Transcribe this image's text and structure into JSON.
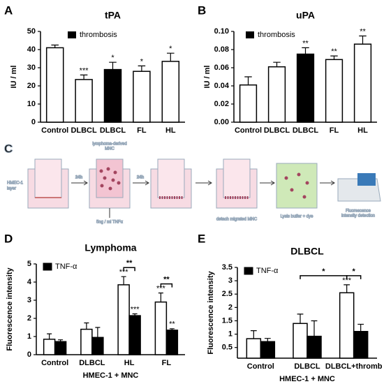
{
  "chart_data": [
    {
      "type": "bar",
      "panel": "A",
      "title": "tPA",
      "ylabel": "IU / ml",
      "categories": [
        "Control",
        "DLBCL",
        "DLBCL",
        "FL",
        "HL"
      ],
      "series": [
        {
          "colors": [
            "#ffffff",
            "#ffffff",
            "#000000",
            "#ffffff",
            "#ffffff"
          ],
          "values": [
            41,
            23.5,
            29,
            28,
            33.5
          ],
          "errors": [
            1.5,
            2.5,
            4,
            3,
            4.5
          ],
          "annotations": [
            null,
            "***",
            "*",
            "*",
            "*"
          ]
        }
      ],
      "legend": {
        "label": "thrombosis",
        "color": "#000000"
      },
      "ylim": [
        0,
        50
      ],
      "yticks": [
        0,
        10,
        20,
        30,
        40,
        50
      ]
    },
    {
      "type": "bar",
      "panel": "B",
      "title": "uPA",
      "ylabel": "IU / ml",
      "categories": [
        "Control",
        "DLBCL",
        "DLBCL",
        "FL",
        "HL"
      ],
      "series": [
        {
          "colors": [
            "#ffffff",
            "#ffffff",
            "#000000",
            "#ffffff",
            "#ffffff"
          ],
          "values": [
            0.041,
            0.061,
            0.075,
            0.069,
            0.086
          ],
          "errors": [
            0.009,
            0.005,
            0.007,
            0.004,
            0.009
          ],
          "annotations": [
            null,
            null,
            "**",
            "**",
            "**"
          ]
        }
      ],
      "legend": {
        "label": "thrombosis",
        "color": "#000000"
      },
      "ylim": [
        0,
        0.1
      ],
      "yticks": [
        {
          "value": 0,
          "label": "0.00"
        },
        {
          "value": 0.02,
          "label": "0.02"
        },
        {
          "value": 0.04,
          "label": "0.04"
        },
        {
          "value": 0.06,
          "label": "0.06"
        },
        {
          "value": 0.08,
          "label": "0.08"
        },
        {
          "value": 0.1,
          "label": "0.10"
        }
      ]
    },
    {
      "type": "bar",
      "panel": "D",
      "title": "Lymphoma",
      "ylabel": "Fluorescence intensity",
      "xlabel": "HMEC-1 + MNC",
      "categories": [
        "Control",
        "DLBCL",
        "HL",
        "FL"
      ],
      "series": [
        {
          "color": "#ffffff",
          "values": [
            0.85,
            1.4,
            3.85,
            2.9
          ],
          "errors": [
            0.3,
            0.35,
            0.45,
            0.5
          ],
          "annotations": [
            null,
            null,
            "***",
            "***"
          ]
        },
        {
          "name": "TNF-α",
          "color": "#000000",
          "values": [
            0.72,
            0.95,
            2.15,
            1.35
          ],
          "errors": [
            0.1,
            0.55,
            0.1,
            0.08
          ],
          "annotations": [
            null,
            null,
            "***",
            "**"
          ]
        }
      ],
      "brackets": [
        {
          "from": [
            0,
            2
          ],
          "to": [
            1,
            2
          ],
          "label": "**"
        },
        {
          "from": [
            0,
            3
          ],
          "to": [
            1,
            3
          ],
          "label": "**"
        }
      ],
      "ylim": [
        0,
        5
      ],
      "yticks": [
        0,
        1,
        2,
        3,
        4,
        5
      ]
    },
    {
      "type": "bar",
      "panel": "E",
      "title": "DLBCL",
      "ylabel": "Fluorescence intensity",
      "xlabel": "HMEC-1 + MNC",
      "categories": [
        "Control",
        "DLBCL",
        "DLBCL+thromb"
      ],
      "series": [
        {
          "color": "#ffffff",
          "values": [
            0.83,
            1.4,
            2.55
          ],
          "errors": [
            0.3,
            0.35,
            0.3
          ],
          "annotations": [
            null,
            null,
            "***"
          ]
        },
        {
          "name": "TNF-α",
          "color": "#000000",
          "values": [
            0.72,
            0.92,
            1.1
          ],
          "errors": [
            0.12,
            0.58,
            0.27
          ],
          "annotations": [
            null,
            null,
            null
          ]
        }
      ],
      "brackets": [
        {
          "from": [
            0,
            1
          ],
          "to": [
            0,
            2
          ],
          "label": "*"
        },
        {
          "from": [
            0,
            2
          ],
          "to": [
            1,
            2
          ],
          "label": "*"
        }
      ],
      "ylim": [
        0.1,
        3.5
      ],
      "yticks": [
        0.5,
        1,
        1.5,
        2,
        2.5,
        3,
        3.5
      ]
    }
  ],
  "diagram": {
    "panel": "C",
    "hmec": [
      "HMEC-1",
      "layer"
    ],
    "step1": "24h",
    "mnc": [
      "lymphoma-derived",
      "MNC"
    ],
    "tnf": "5ng / ml TNFα",
    "step2": "24h",
    "detach": "detach migrated MNC",
    "lysis": "Lysis buffer + dye",
    "detect": [
      "Fluorescence",
      "intensity detection"
    ]
  }
}
